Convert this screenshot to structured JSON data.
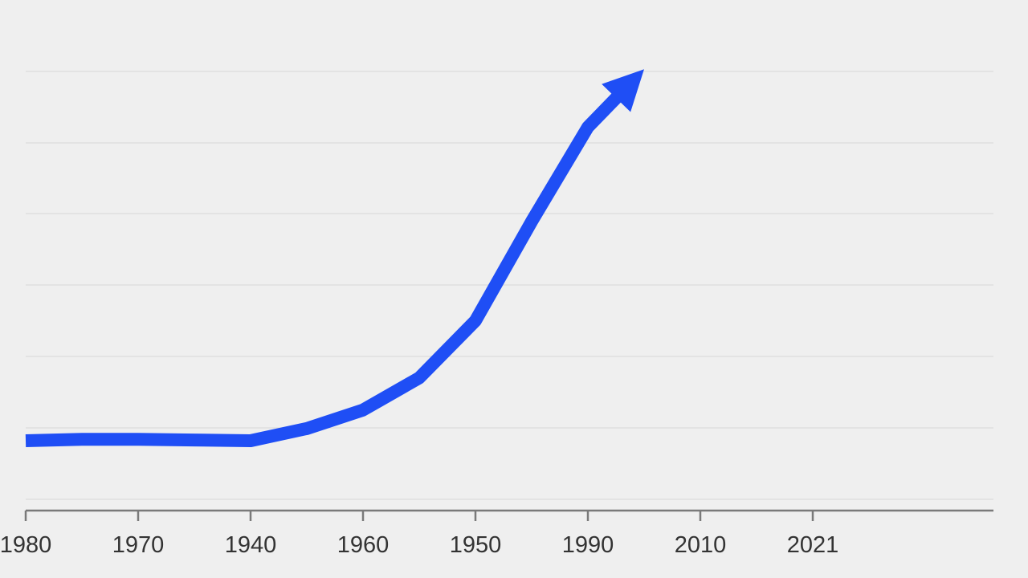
{
  "chart_data": {
    "type": "line",
    "title": "",
    "xlabel": "",
    "ylabel": "",
    "grid": true,
    "x_tick_labels": [
      "1980",
      "1970",
      "1940",
      "1960",
      "1950",
      "1990",
      "2010",
      "2021"
    ],
    "series": [
      {
        "color": "#1f4ef5",
        "values": [
          0.0,
          0.02,
          0.02,
          0.01,
          0.0,
          0.17,
          0.43,
          0.88,
          1.68,
          3.07,
          4.39,
          5.2
        ]
      }
    ],
    "end_arrow": true
  }
}
